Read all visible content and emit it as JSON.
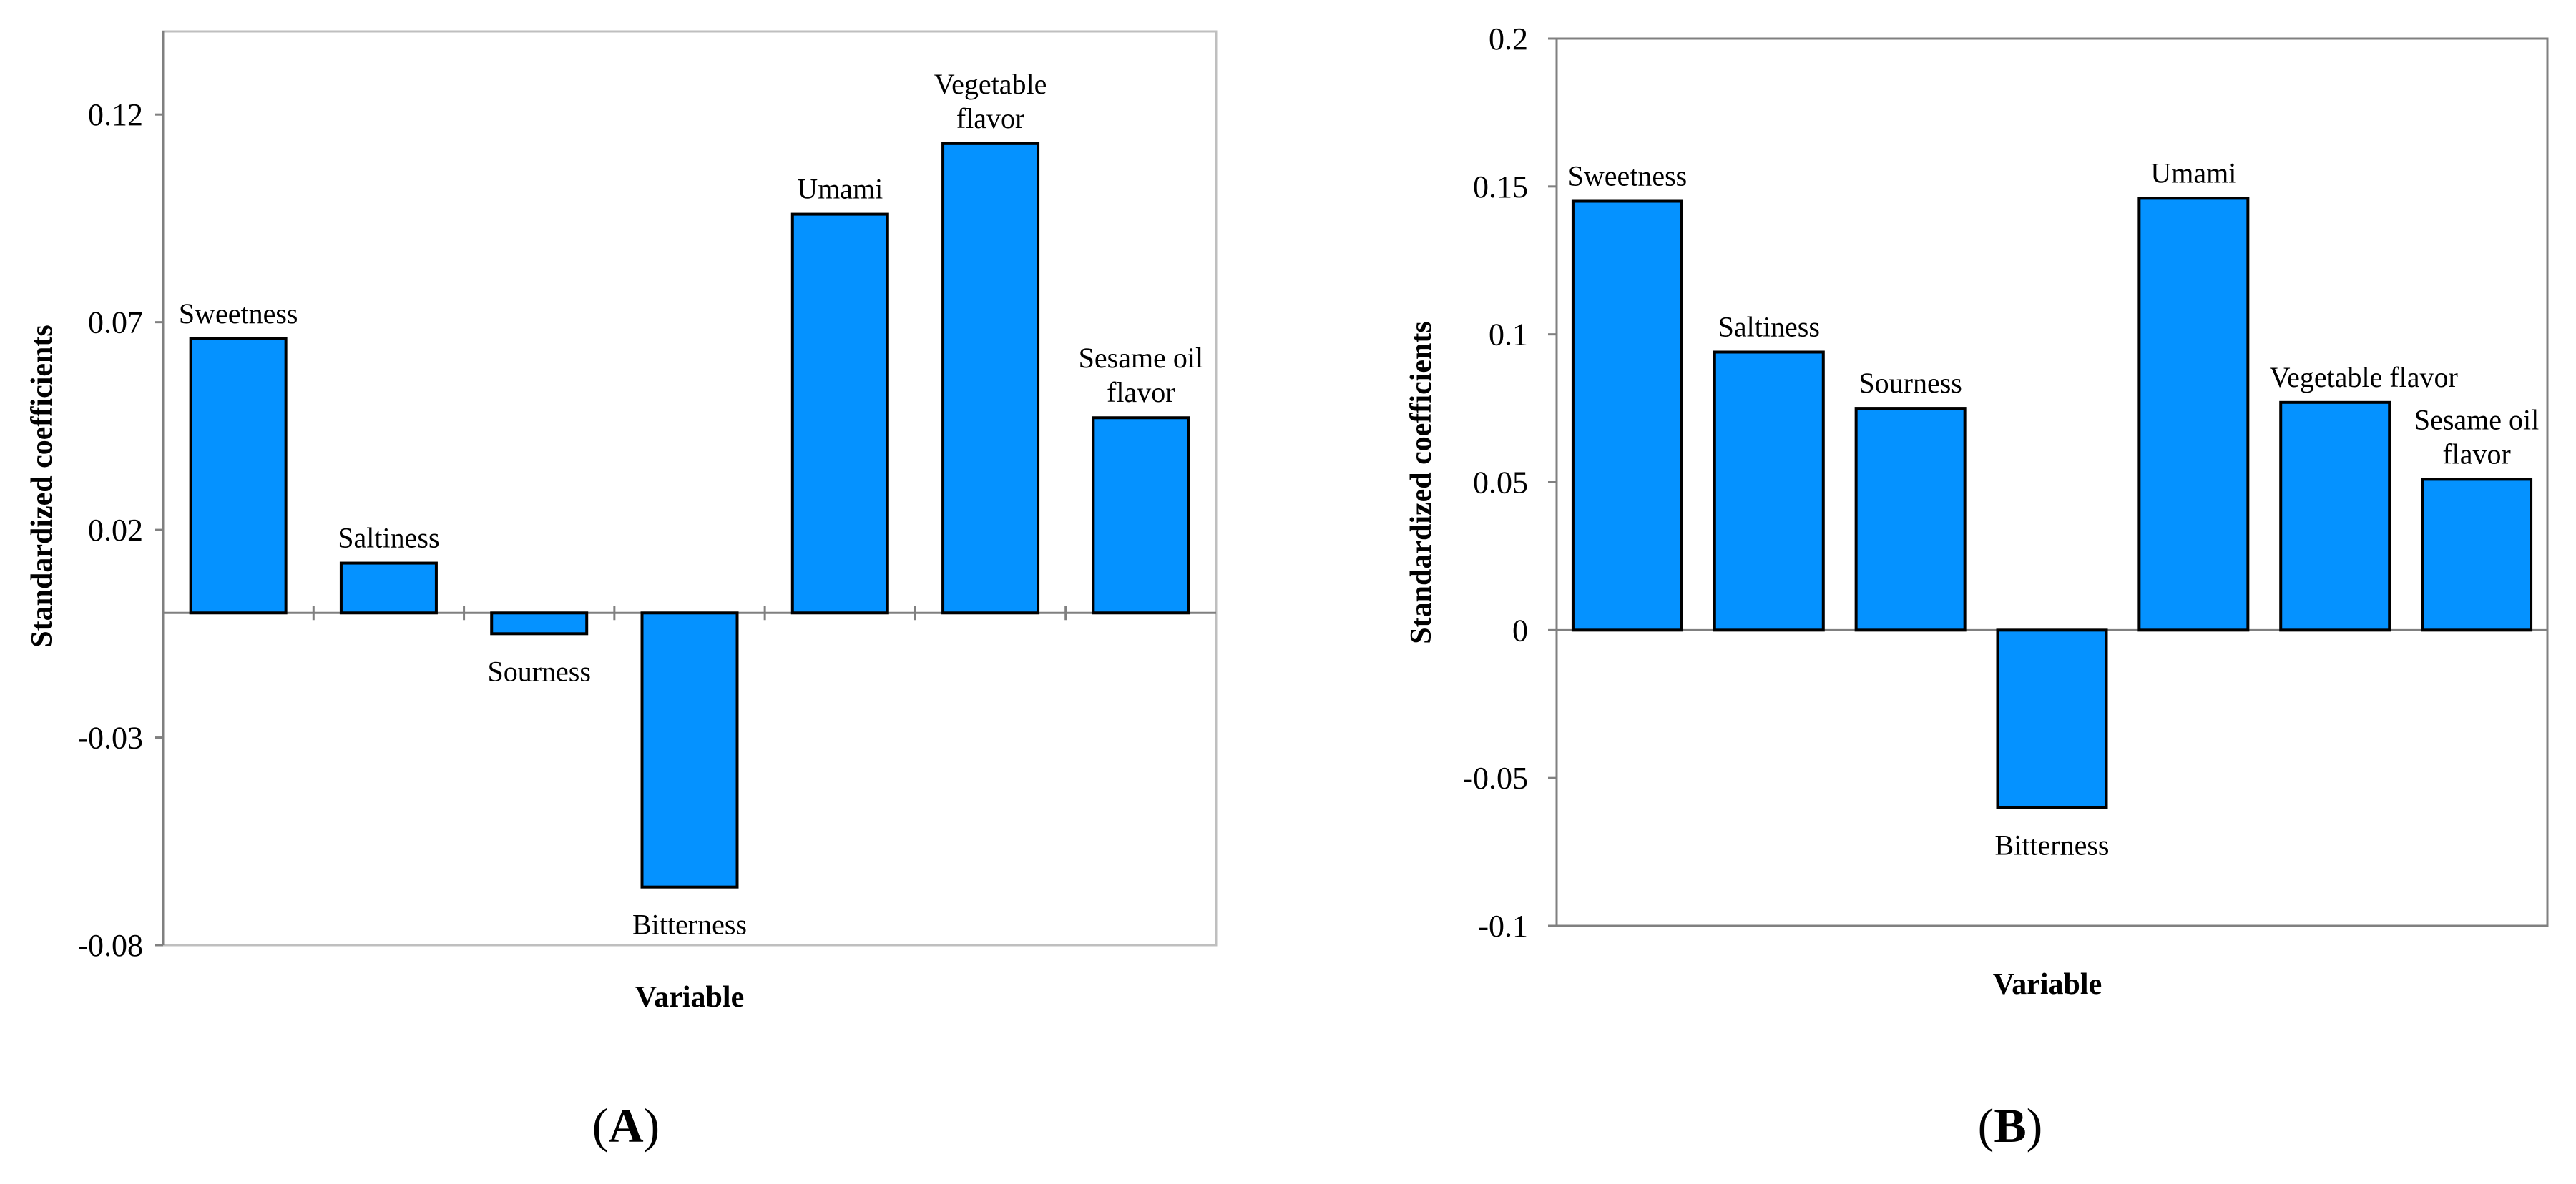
{
  "chart_data": [
    {
      "panel_label": "(A)",
      "type": "bar",
      "xlabel": "Variable",
      "ylabel": "Standardized coefficients",
      "ylim": [
        -0.08,
        0.14
      ],
      "yticks": [
        "0.12",
        "0.07",
        "0.02",
        "-0.03",
        "-0.08"
      ],
      "ytick_values": [
        0.12,
        0.07,
        0.02,
        -0.03,
        -0.08
      ],
      "categories": [
        "Sweetness",
        "Saltiness",
        "Sourness",
        "Bitterness",
        "Umami",
        "Vegetable flavor",
        "Sesame oil flavor"
      ],
      "bar_labels": [
        [
          "Sweetness"
        ],
        [
          "Saltiness"
        ],
        [
          "Sourness"
        ],
        [
          "Bitterness"
        ],
        [
          "Umami"
        ],
        [
          "Vegetable",
          "flavor"
        ],
        [
          "Sesame oil",
          "flavor"
        ]
      ],
      "values": [
        0.066,
        0.012,
        -0.005,
        -0.066,
        0.096,
        0.113,
        0.047
      ],
      "bar_color": "#0592FF"
    },
    {
      "panel_label": "(B)",
      "type": "bar",
      "xlabel": "Variable",
      "ylabel": "Standardized coefficients",
      "ylim": [
        -0.1,
        0.2
      ],
      "yticks": [
        "0.2",
        "0.15",
        "0.1",
        "0.05",
        "0",
        "-0.05",
        "-0.1"
      ],
      "ytick_values": [
        0.2,
        0.15,
        0.1,
        0.05,
        0,
        -0.05,
        -0.1
      ],
      "categories": [
        "Sweetness",
        "Saltiness",
        "Sourness",
        "Bitterness",
        "Umami",
        "Vegetable flavor",
        "Sesame oil flavor"
      ],
      "bar_labels": [
        [
          "Sweetness"
        ],
        [
          "Saltiness"
        ],
        [
          "Sourness"
        ],
        [
          "Bitterness"
        ],
        [
          "Umami"
        ],
        [
          "Vegetable  flavor"
        ],
        [
          "Sesame oil",
          "flavor"
        ]
      ],
      "values": [
        0.145,
        0.094,
        0.075,
        -0.06,
        0.146,
        0.077,
        0.051
      ],
      "bar_color": "#0592FF"
    }
  ]
}
